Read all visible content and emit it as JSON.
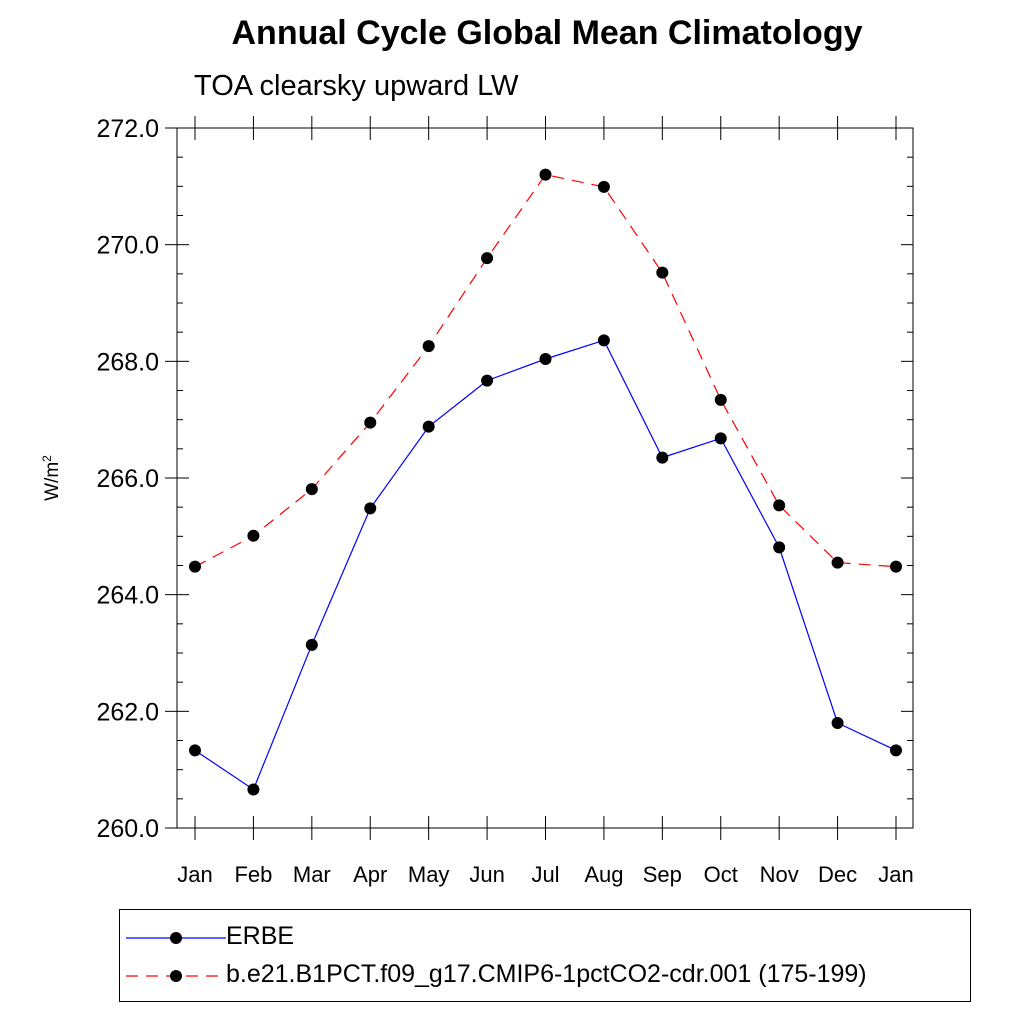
{
  "chart_data": {
    "type": "line",
    "title": "Annual Cycle Global Mean Climatology",
    "subtitle": "TOA clearsky upward LW",
    "ylabel_base": "W/m",
    "ylabel_sup": "2",
    "xlabel": "",
    "categories": [
      "Jan",
      "Feb",
      "Mar",
      "Apr",
      "May",
      "Jun",
      "Jul",
      "Aug",
      "Sep",
      "Oct",
      "Nov",
      "Dec",
      "Jan"
    ],
    "ylim": [
      260.0,
      272.0
    ],
    "yticks": [
      "260.0",
      "262.0",
      "264.0",
      "266.0",
      "268.0",
      "270.0",
      "272.0"
    ],
    "series": [
      {
        "name": "ERBE",
        "color": "#0000ff",
        "dash": "solid",
        "values": [
          261.33,
          260.66,
          263.14,
          265.48,
          266.88,
          267.67,
          268.04,
          268.36,
          266.35,
          266.68,
          264.81,
          261.8,
          261.33
        ]
      },
      {
        "name": "b.e21.B1PCT.f09_g17.CMIP6-1pctCO2-cdr.001 (175-199)",
        "color": "#ff0000",
        "dash": "dashed",
        "values": [
          264.48,
          265.01,
          265.81,
          266.95,
          268.26,
          269.77,
          271.2,
          270.99,
          269.52,
          267.34,
          265.53,
          264.55,
          264.48
        ]
      }
    ]
  }
}
